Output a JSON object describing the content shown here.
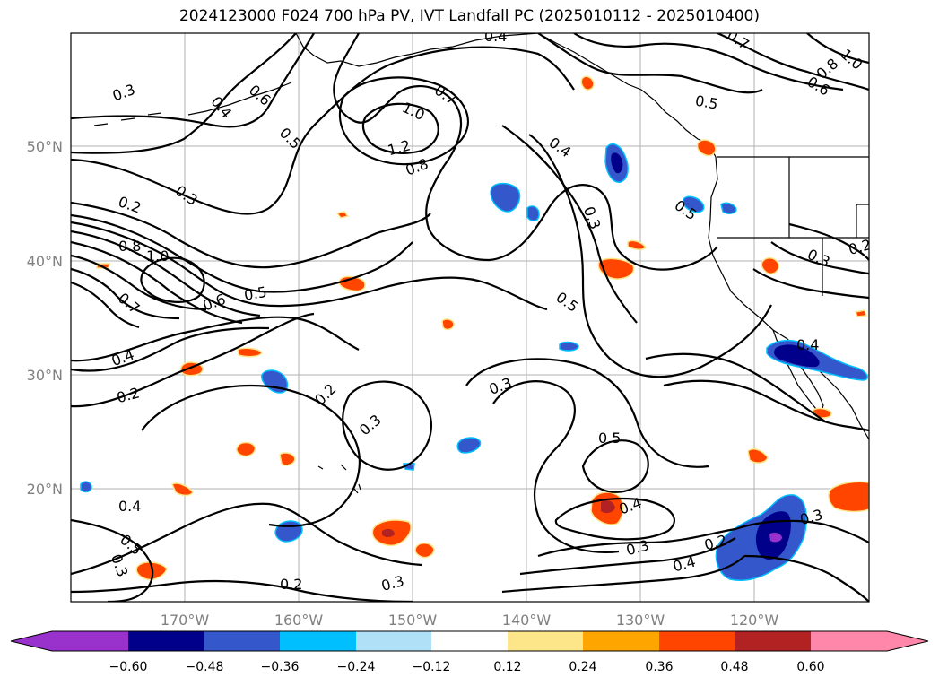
{
  "title": "2024123000 F024 700 hPa PV, IVT Landfall PC (2025010112 - 2025010400)",
  "lat_labels": [
    "50°N",
    "40°N",
    "30°N",
    "20°N"
  ],
  "lon_labels": [
    "170°W",
    "160°W",
    "150°W",
    "140°W",
    "130°W",
    "120°W"
  ],
  "contour_labels": [
    "0.3",
    "0.4",
    "0.6",
    "0.5",
    "0.7",
    "1.0",
    "1.2",
    "0.8",
    "0.4",
    "0.5",
    "0.7",
    "0.8",
    "0.6",
    "1.0",
    "0.3",
    "0.2",
    "0.8",
    "1.0",
    "0.7",
    "0.6",
    "0.5",
    "0.4",
    "0.2",
    "0.3",
    "0.5",
    "0.4",
    "0.5",
    "0.3",
    "0.2",
    "0.2",
    "0.3",
    "0.3",
    "0.5",
    "0.4",
    "0.3",
    "0.2",
    "0.4",
    "0.3",
    "0.4",
    "0.5",
    "0.3",
    "0.2",
    "0.3",
    "0.4"
  ],
  "colorbar": {
    "ticks": [
      "−0.60",
      "−0.48",
      "−0.36",
      "−0.24",
      "−0.12",
      "0.12",
      "0.24",
      "0.36",
      "0.48",
      "0.60"
    ],
    "colors": [
      "#9932cc",
      "#00008b",
      "#3458cc",
      "#00bfff",
      "#b0e0f8",
      "#ffffff",
      "#fde68a",
      "#ffa500",
      "#ff4500",
      "#b22222",
      "#ff88aa"
    ]
  }
}
